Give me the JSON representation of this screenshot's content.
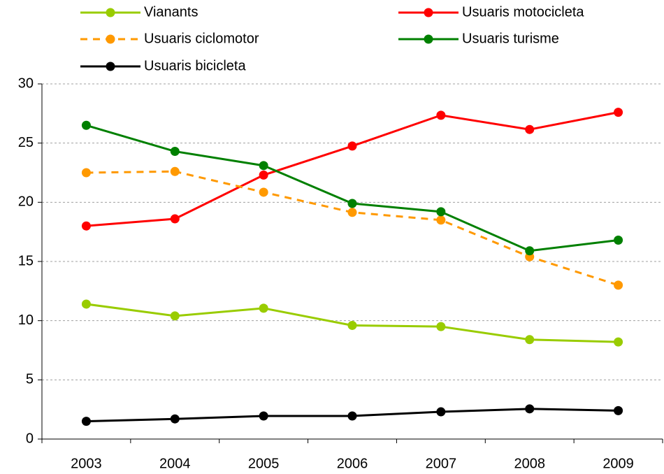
{
  "chart_data": {
    "type": "line",
    "categories": [
      "2003",
      "2004",
      "2005",
      "2006",
      "2007",
      "2008",
      "2009"
    ],
    "series": [
      {
        "name": "Vianants",
        "color": "#99cc00",
        "values": [
          11.4,
          10.4,
          11.05,
          9.6,
          9.5,
          8.4,
          8.2
        ]
      },
      {
        "name": "Usuaris motocicleta",
        "color": "#ff0000",
        "values": [
          18.0,
          18.6,
          22.3,
          24.75,
          27.35,
          26.15,
          27.6
        ]
      },
      {
        "name": "Usuaris ciclomotor",
        "color": "#ff9900",
        "dashed": true,
        "values": [
          22.5,
          22.6,
          20.85,
          19.15,
          18.5,
          15.4,
          13.0
        ]
      },
      {
        "name": "Usuaris turisme",
        "color": "#008000",
        "values": [
          26.5,
          24.3,
          23.1,
          19.9,
          19.2,
          15.9,
          16.8
        ]
      },
      {
        "name": "Usuaris bicicleta",
        "color": "#000000",
        "values": [
          1.5,
          1.7,
          1.95,
          1.95,
          2.3,
          2.55,
          2.4
        ]
      }
    ],
    "ylim": [
      0,
      30
    ],
    "yticks": [
      0,
      5,
      10,
      15,
      20,
      25,
      30
    ],
    "grid": true,
    "legend": "top"
  }
}
